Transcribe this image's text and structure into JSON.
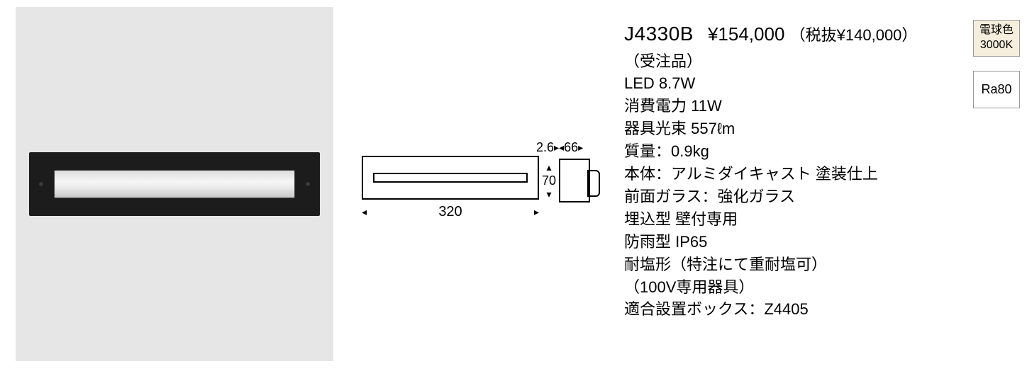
{
  "product": {
    "model": "J4330B",
    "price_incl": "¥154,000",
    "price_excl_label": "（税抜¥140,000）",
    "order_note": "（受注品）",
    "specs": [
      "LED 8.7W",
      "消費電力 11W",
      "器具光束 557ℓm",
      "質量：0.9kg",
      "本体：アルミダイキャスト 塗装仕上",
      "前面ガラス：強化ガラス",
      "埋込型 壁付専用",
      "防雨型 IP65",
      "耐塩形（特注にて重耐塩可）",
      "（100V専用器具）",
      "適合設置ボックス：Z4405"
    ]
  },
  "diagram": {
    "width_mm": "320",
    "height_mm": "70",
    "depth_gap_mm": "2.6",
    "depth_mm": "66"
  },
  "badges": {
    "color_temp_label": "電球色",
    "color_temp_value": "3000K",
    "cri": "Ra80"
  },
  "colors": {
    "page_bg": "#ffffff",
    "photo_bg": "#e6e6e6",
    "fixture_body": "#1c1c1c",
    "badge_warm_bg": "#f5eedd",
    "text": "#000000"
  }
}
